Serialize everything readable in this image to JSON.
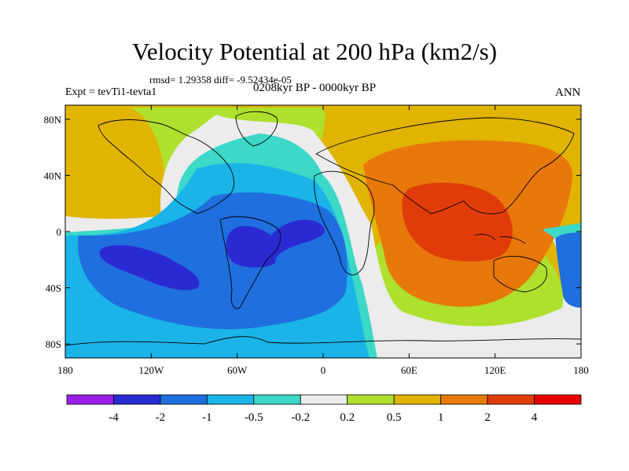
{
  "title": "Velocity Potential at 200 hPa (km2/s)",
  "stats": "rmsd= 1.29358 diff= -9.52434e-05",
  "left_label": "Expt = tevTi1-tevta1",
  "center_label": "0208kyr BP - 0000kyr BP",
  "right_label": "ANN",
  "chart_data": {
    "type": "heatmap",
    "title": "Velocity Potential at 200 hPa (km2/s)",
    "xlabel": "",
    "ylabel": "",
    "xlim": [
      -180,
      180
    ],
    "ylim": [
      -90,
      90
    ],
    "x_ticks": [
      {
        "value": -180,
        "label": "180"
      },
      {
        "value": -120,
        "label": "120W"
      },
      {
        "value": -60,
        "label": "60W"
      },
      {
        "value": 0,
        "label": "0"
      },
      {
        "value": 60,
        "label": "60E"
      },
      {
        "value": 120,
        "label": "120E"
      },
      {
        "value": 180,
        "label": "180"
      }
    ],
    "y_ticks": [
      {
        "value": 80,
        "label": "80N"
      },
      {
        "value": 40,
        "label": "40N"
      },
      {
        "value": 0,
        "label": "0"
      },
      {
        "value": -40,
        "label": "40S"
      },
      {
        "value": -80,
        "label": "80S"
      }
    ],
    "colorbar": {
      "levels": [
        -4,
        -2,
        -1,
        -0.5,
        -0.2,
        0.2,
        0.5,
        1,
        2,
        4
      ],
      "labels": [
        "-4",
        "-2",
        "-1",
        "-0.5",
        "-0.2",
        "0.2",
        "0.5",
        "1",
        "2",
        "4"
      ],
      "colors": [
        "#9b1fe8",
        "#2a2ad2",
        "#1f6fde",
        "#1ab4e8",
        "#3cd8c8",
        "#ececec",
        "#aee02e",
        "#e0b400",
        "#e8780a",
        "#e03c0a",
        "#e60000"
      ]
    },
    "features": [
      {
        "name": "ascent (negative) center",
        "lon": -35,
        "lat": -5,
        "value": -2.5
      },
      {
        "name": "ascent (negative) center",
        "lon": -130,
        "lat": -25,
        "value": -2.2
      },
      {
        "name": "descent (positive) center",
        "lon": 80,
        "lat": 0,
        "value": 3
      }
    ]
  }
}
